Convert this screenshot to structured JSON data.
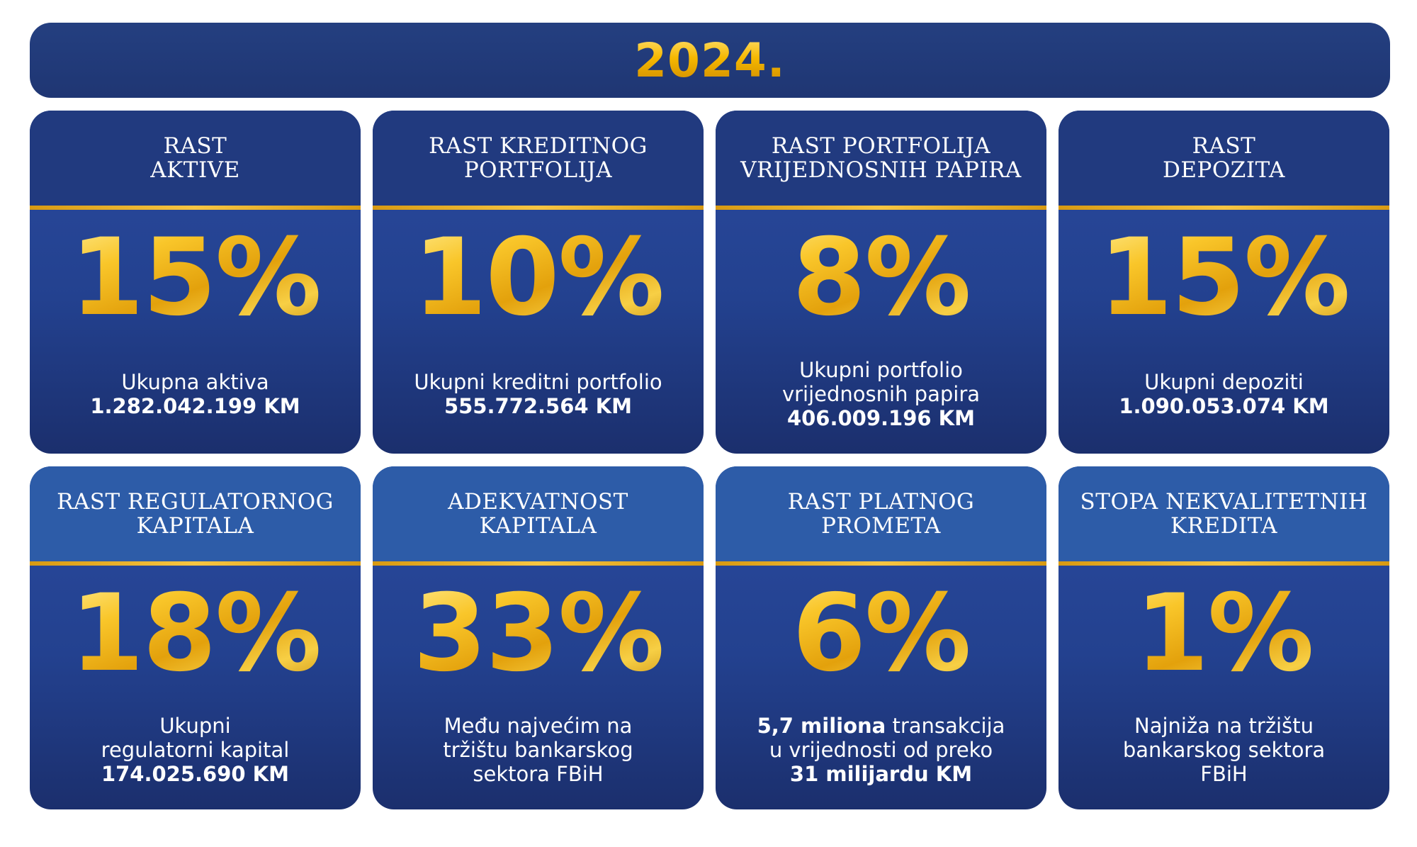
{
  "header": {
    "year": "2024."
  },
  "cards": [
    {
      "title": "RAST\nAKTIVE",
      "percent": "15%",
      "lines": [
        "Ukupna aktiva"
      ],
      "bold": "1.282.042.199 KM"
    },
    {
      "title": "RAST KREDITNOG\nPORTFOLIJA",
      "percent": "10%",
      "lines": [
        "Ukupni kreditni portfolio"
      ],
      "bold": "555.772.564 KM"
    },
    {
      "title": "RAST PORTFOLIJA\nVRIJEDNOSNIH PAPIRA",
      "percent": "8%",
      "lines": [
        "Ukupni portfolio",
        "vrijednosnih papira"
      ],
      "bold": "406.009.196 KM"
    },
    {
      "title": "RAST\nDEPOZITA",
      "percent": "15%",
      "lines": [
        "Ukupni depoziti"
      ],
      "bold": "1.090.053.074 KM"
    },
    {
      "title": "RAST REGULATORNOG\nKAPITALA",
      "percent": "18%",
      "lines": [
        "Ukupni",
        "regulatorni kapital"
      ],
      "bold": "174.025.690 KM"
    },
    {
      "title": "ADEKVATNOST\nKAPITALA",
      "percent": "33%",
      "lines": [
        "Među najvećim na",
        "tržištu bankarskog",
        "sektora FBiH"
      ],
      "bold": ""
    },
    {
      "title": "RAST PLATNOG\nPROMETA",
      "percent": "6%",
      "lead_bold": "5,7 miliona",
      "lead_rest": " transakcija",
      "lines": [
        "u vrijednosti od preko"
      ],
      "bold": "31 milijardu KM"
    },
    {
      "title": "STOPA NEKVALITETNIH\nKREDITA",
      "percent": "1%",
      "lines": [
        "Najniža na tržištu",
        "bankarskog sektora",
        "FBiH"
      ],
      "bold": ""
    }
  ]
}
